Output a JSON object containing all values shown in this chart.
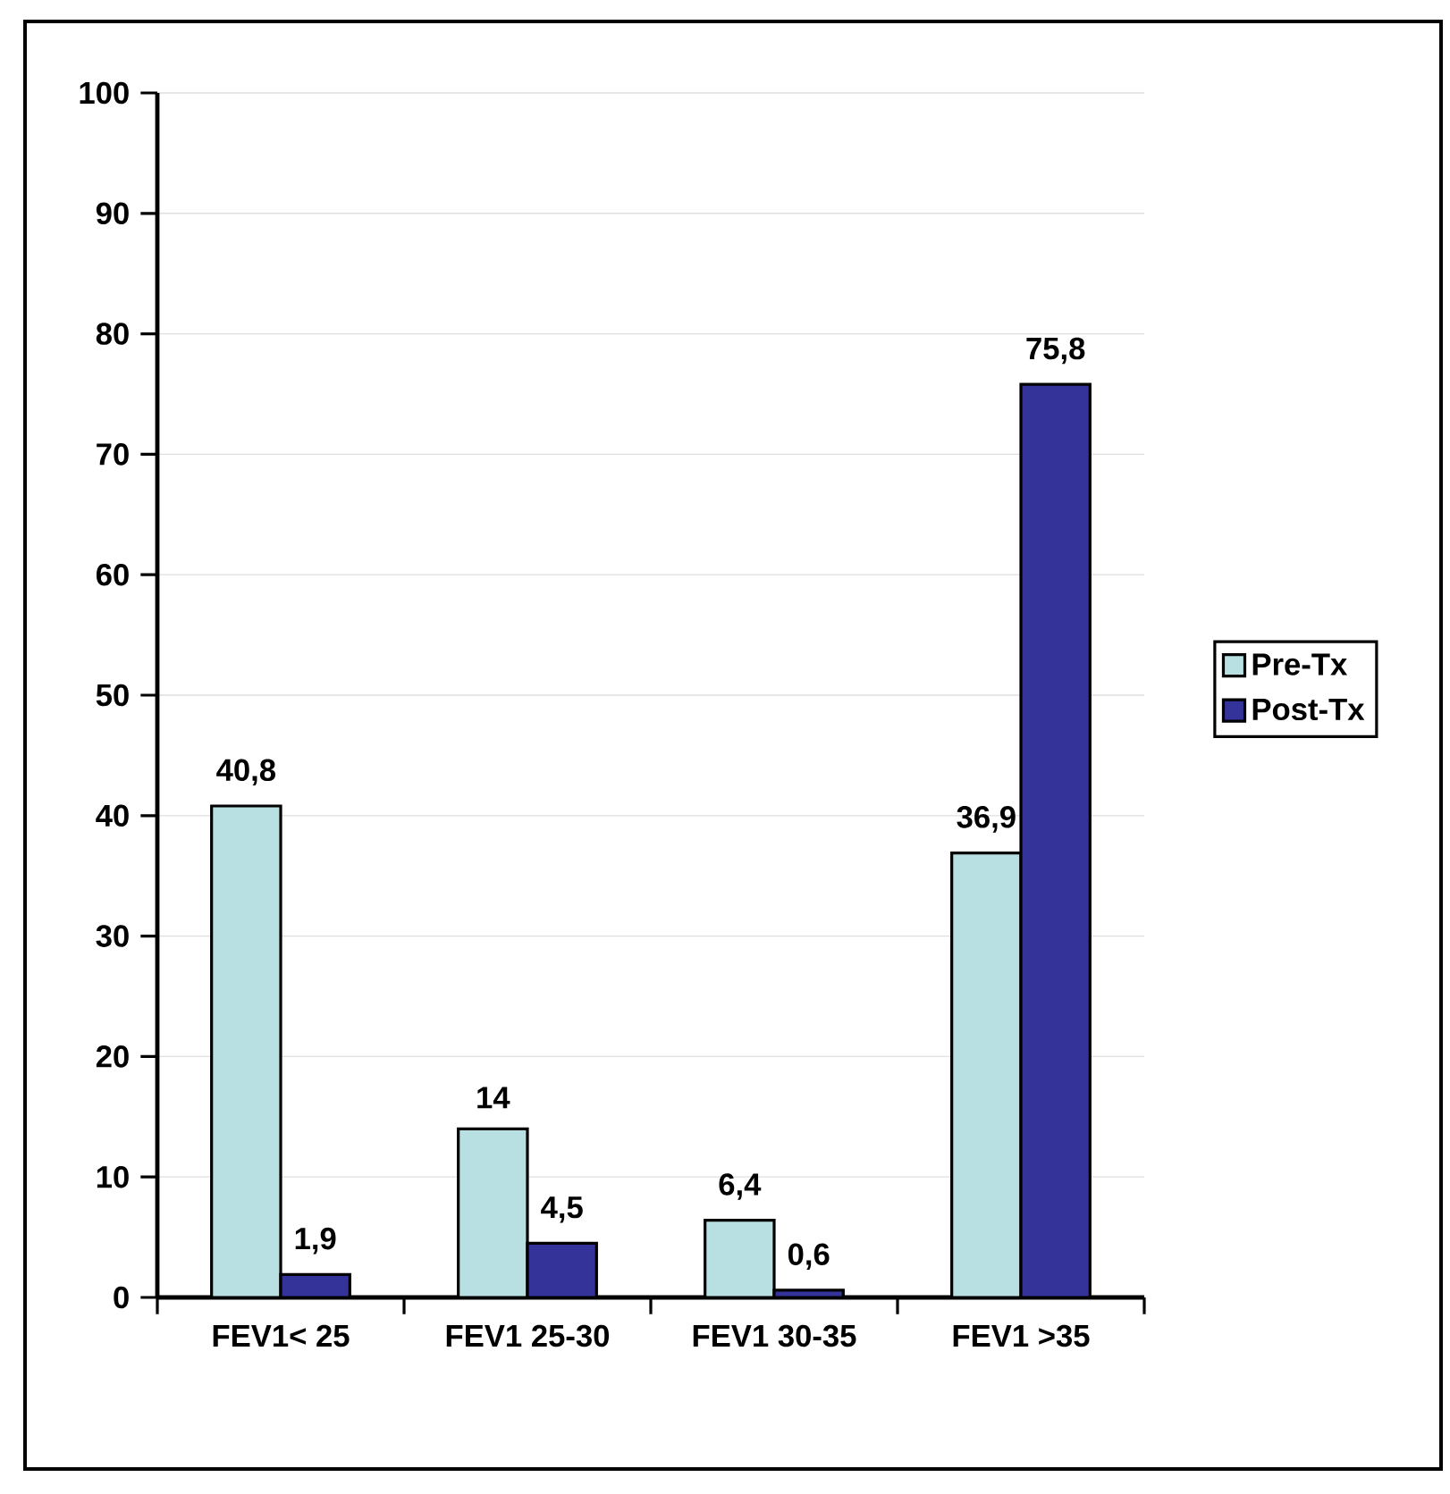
{
  "chart_data": {
    "type": "bar",
    "categories": [
      "FEV1< 25",
      "FEV1 25-30",
      "FEV1 30-35",
      "FEV1 >35"
    ],
    "series": [
      {
        "name": "Pre-Tx",
        "color": "#b8e0e3",
        "values": [
          40.8,
          14,
          6.4,
          36.9
        ],
        "value_labels": [
          "40,8",
          "14",
          "6,4",
          "36,9"
        ]
      },
      {
        "name": "Post-Tx",
        "color": "#333399",
        "values": [
          1.9,
          4.5,
          0.6,
          75.8
        ],
        "value_labels": [
          "1,9",
          "4,5",
          "0,6",
          "75,8"
        ]
      }
    ],
    "ylim": [
      0,
      100
    ],
    "yticks": [
      0,
      10,
      20,
      30,
      40,
      50,
      60,
      70,
      80,
      90,
      100
    ],
    "grid": "y",
    "legend": "right"
  }
}
